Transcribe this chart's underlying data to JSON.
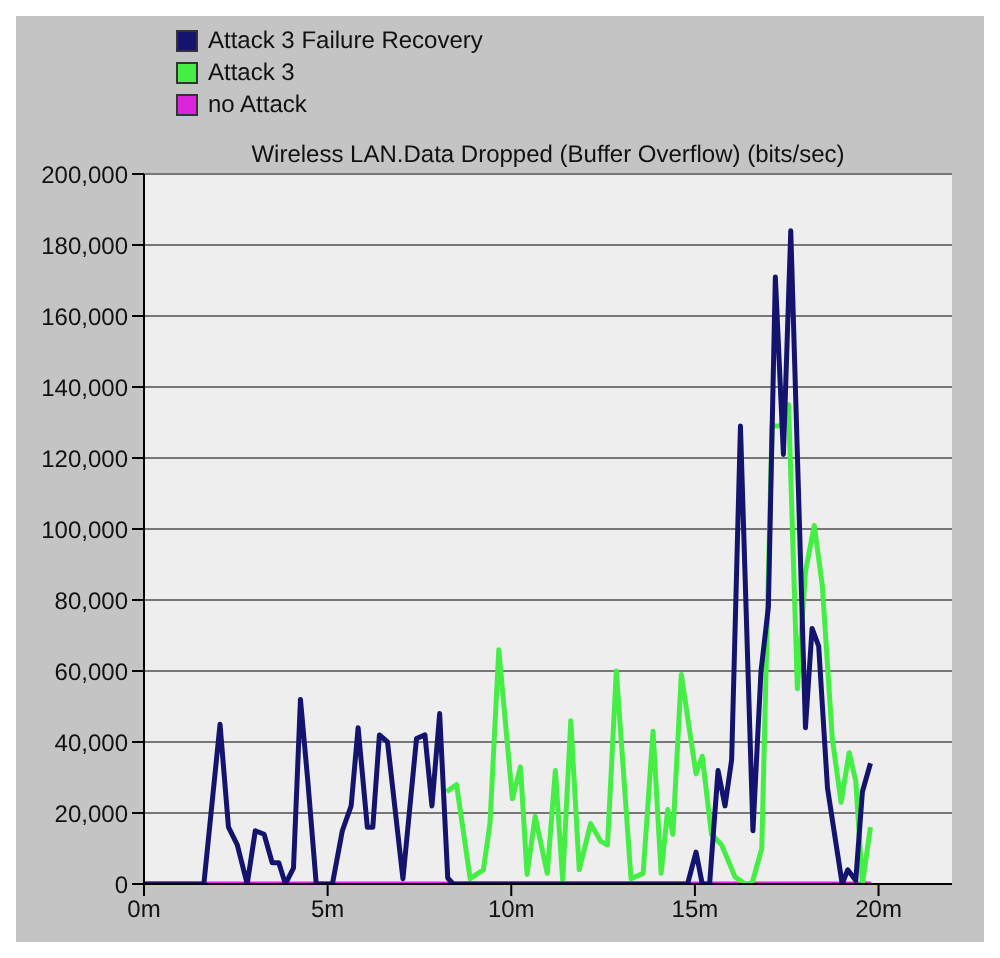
{
  "chart_data": {
    "type": "line",
    "title": "Wireless LAN.Data Dropped (Buffer Overflow) (bits/sec)",
    "xlim": [
      0,
      22
    ],
    "xticks": [
      {
        "value": 0,
        "label": "0m"
      },
      {
        "value": 5,
        "label": "5m"
      },
      {
        "value": 10,
        "label": "10m"
      },
      {
        "value": 15,
        "label": "15m"
      },
      {
        "value": 20,
        "label": "20m"
      }
    ],
    "ylim": [
      0,
      200000
    ],
    "yticks": [
      {
        "value": 0,
        "label": "0"
      },
      {
        "value": 20000,
        "label": "20,000"
      },
      {
        "value": 40000,
        "label": "40,000"
      },
      {
        "value": 60000,
        "label": "60,000"
      },
      {
        "value": 80000,
        "label": "80,000"
      },
      {
        "value": 100000,
        "label": "100,000"
      },
      {
        "value": 120000,
        "label": "120,000"
      },
      {
        "value": 140000,
        "label": "140,000"
      },
      {
        "value": 160000,
        "label": "160,000"
      },
      {
        "value": 180000,
        "label": "180,000"
      },
      {
        "value": 200000,
        "label": "200,000"
      }
    ],
    "grid": "y",
    "legend": "top left",
    "marker": "none",
    "line_style": "solid",
    "series": [
      {
        "name": "Attack 3 Failure Recovery",
        "color": "#14146e",
        "x": [
          0,
          1.63,
          2.07,
          2.3,
          2.54,
          2.81,
          3.03,
          3.27,
          3.49,
          3.67,
          3.85,
          4.07,
          4.26,
          4.46,
          4.69,
          5.13,
          5.4,
          5.64,
          5.83,
          6.08,
          6.23,
          6.41,
          6.63,
          7.05,
          7.42,
          7.65,
          7.84,
          8.05,
          8.27,
          8.42,
          14.8,
          15.03,
          15.2,
          15.4,
          15.63,
          15.82,
          16.0,
          16.24,
          16.58,
          16.8,
          17.0,
          17.19,
          17.41,
          17.61,
          18.01,
          18.19,
          18.37,
          18.61,
          19.01,
          19.16,
          19.38,
          19.56,
          19.78
        ],
        "values": [
          0,
          0,
          45000,
          16000,
          11000,
          0,
          15000,
          14000,
          6000,
          6000,
          0,
          4500,
          52000,
          29000,
          0,
          0,
          15000,
          22000,
          44000,
          16000,
          16000,
          42000,
          40000,
          1500,
          41000,
          42000,
          22000,
          48000,
          1700,
          0,
          0,
          9000,
          0,
          0,
          32000,
          22000,
          35000,
          129000,
          15000,
          60000,
          78000,
          171000,
          121000,
          184000,
          44000,
          72000,
          67000,
          27000,
          0,
          4000,
          1000,
          26000,
          34000
        ]
      },
      {
        "name": "Attack 3",
        "color": "#44ee44",
        "x": [
          8.24,
          8.51,
          8.88,
          9.24,
          9.42,
          9.66,
          10.03,
          10.25,
          10.43,
          10.65,
          10.98,
          11.2,
          11.4,
          11.62,
          11.85,
          12.16,
          12.44,
          12.62,
          12.86,
          13.26,
          13.59,
          13.86,
          14.08,
          14.26,
          14.4,
          14.63,
          15.03,
          15.2,
          15.45,
          15.73,
          16.09,
          16.37,
          16.55,
          16.82,
          17.1,
          17.33,
          17.55,
          17.79,
          18.01,
          18.25,
          18.47,
          18.74,
          18.98,
          19.2,
          19.38,
          19.56,
          19.78
        ],
        "values": [
          26000,
          28000,
          1500,
          4000,
          17000,
          66000,
          24000,
          33000,
          2700,
          19000,
          3000,
          32000,
          1000,
          46000,
          4000,
          17000,
          12000,
          11000,
          60000,
          1500,
          3000,
          43000,
          3000,
          21000,
          14000,
          59000,
          31000,
          36000,
          14000,
          11000,
          2000,
          0,
          0,
          10000,
          129000,
          129000,
          135000,
          55000,
          88000,
          101000,
          84000,
          41000,
          23000,
          37000,
          29000,
          0,
          16000
        ]
      },
      {
        "name": "no Attack",
        "color": "#dd22dd",
        "x": [
          0,
          19.8
        ],
        "values": [
          0,
          0
        ]
      }
    ]
  }
}
